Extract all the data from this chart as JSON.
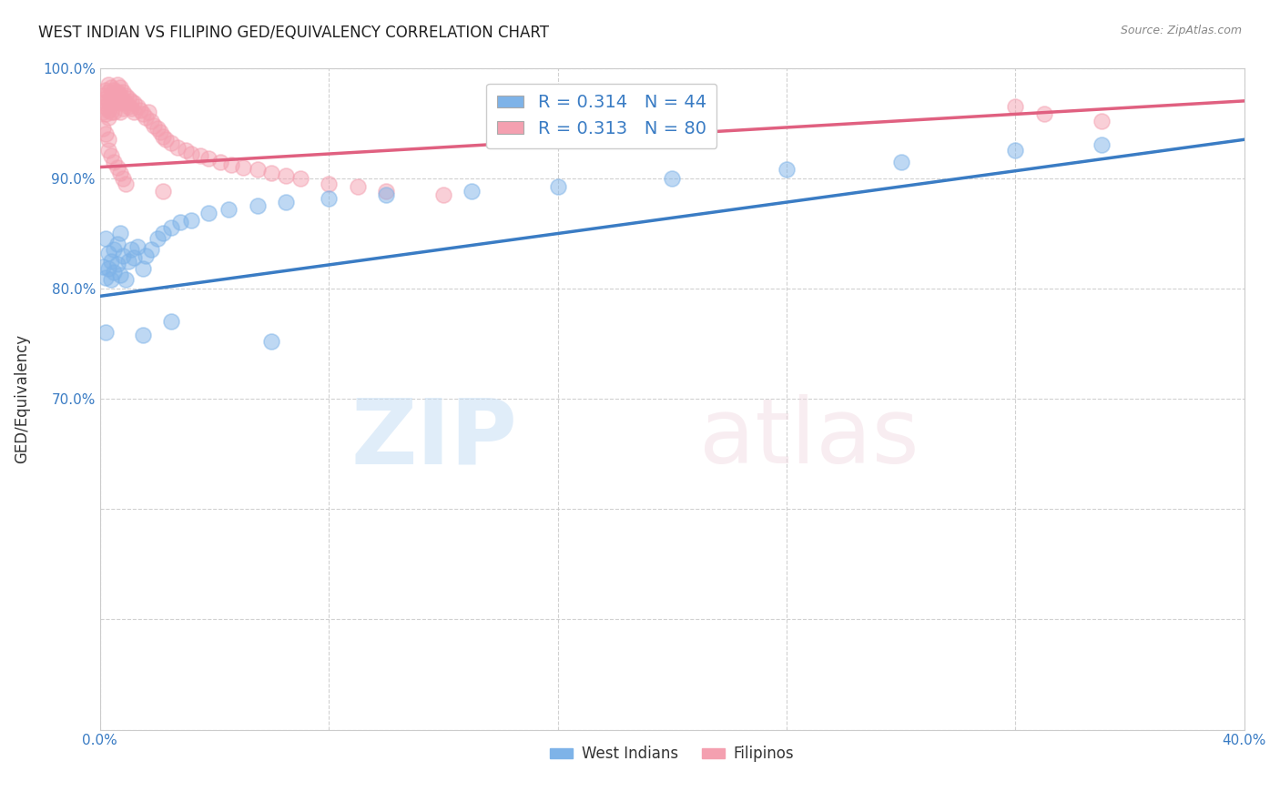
{
  "title": "WEST INDIAN VS FILIPINO GED/EQUIVALENCY CORRELATION CHART",
  "source": "Source: ZipAtlas.com",
  "ylabel": "GED/Equivalency",
  "xlim": [
    0.0,
    0.4
  ],
  "ylim": [
    0.4,
    1.0
  ],
  "xticks": [
    0.0,
    0.08,
    0.16,
    0.24,
    0.32,
    0.4
  ],
  "xticklabels": [
    "0.0%",
    "",
    "",
    "",
    "",
    "40.0%"
  ],
  "yticks": [
    0.4,
    0.5,
    0.6,
    0.7,
    0.8,
    0.9,
    1.0
  ],
  "yticklabels": [
    "",
    "",
    "",
    "70.0%",
    "80.0%",
    "90.0%",
    "100.0%"
  ],
  "west_indian_R": 0.314,
  "west_indian_N": 44,
  "filipino_R": 0.313,
  "filipino_N": 80,
  "west_indian_color": "#7EB3E8",
  "filipino_color": "#F4A0B0",
  "west_indian_line_color": "#3A7CC4",
  "filipino_line_color": "#E06080",
  "wi_x": [
    0.001,
    0.002,
    0.002,
    0.003,
    0.003,
    0.004,
    0.004,
    0.005,
    0.005,
    0.006,
    0.006,
    0.007,
    0.007,
    0.008,
    0.009,
    0.01,
    0.011,
    0.012,
    0.013,
    0.015,
    0.016,
    0.018,
    0.02,
    0.022,
    0.025,
    0.028,
    0.032,
    0.038,
    0.045,
    0.055,
    0.065,
    0.08,
    0.1,
    0.13,
    0.16,
    0.2,
    0.24,
    0.28,
    0.32,
    0.35,
    0.002,
    0.015,
    0.025,
    0.06
  ],
  "wi_y": [
    0.82,
    0.81,
    0.845,
    0.832,
    0.818,
    0.825,
    0.808,
    0.815,
    0.835,
    0.822,
    0.84,
    0.812,
    0.85,
    0.83,
    0.808,
    0.825,
    0.835,
    0.828,
    0.838,
    0.818,
    0.83,
    0.835,
    0.845,
    0.85,
    0.855,
    0.86,
    0.862,
    0.868,
    0.872,
    0.875,
    0.878,
    0.882,
    0.885,
    0.888,
    0.892,
    0.9,
    0.908,
    0.915,
    0.925,
    0.93,
    0.76,
    0.758,
    0.77,
    0.752
  ],
  "fi_x": [
    0.001,
    0.001,
    0.001,
    0.002,
    0.002,
    0.002,
    0.002,
    0.003,
    0.003,
    0.003,
    0.003,
    0.003,
    0.004,
    0.004,
    0.004,
    0.004,
    0.005,
    0.005,
    0.005,
    0.005,
    0.006,
    0.006,
    0.006,
    0.007,
    0.007,
    0.007,
    0.007,
    0.008,
    0.008,
    0.008,
    0.009,
    0.009,
    0.01,
    0.01,
    0.011,
    0.011,
    0.012,
    0.012,
    0.013,
    0.014,
    0.015,
    0.016,
    0.017,
    0.018,
    0.019,
    0.02,
    0.021,
    0.022,
    0.023,
    0.025,
    0.027,
    0.03,
    0.032,
    0.035,
    0.038,
    0.042,
    0.046,
    0.05,
    0.055,
    0.06,
    0.065,
    0.07,
    0.08,
    0.09,
    0.1,
    0.12,
    0.001,
    0.002,
    0.003,
    0.003,
    0.004,
    0.005,
    0.006,
    0.007,
    0.008,
    0.009,
    0.022,
    0.32,
    0.33,
    0.35
  ],
  "fi_y": [
    0.975,
    0.968,
    0.96,
    0.98,
    0.972,
    0.965,
    0.958,
    0.985,
    0.978,
    0.97,
    0.962,
    0.955,
    0.982,
    0.975,
    0.968,
    0.96,
    0.98,
    0.975,
    0.968,
    0.96,
    0.985,
    0.978,
    0.97,
    0.982,
    0.975,
    0.968,
    0.96,
    0.978,
    0.97,
    0.963,
    0.975,
    0.968,
    0.972,
    0.965,
    0.97,
    0.963,
    0.968,
    0.96,
    0.965,
    0.962,
    0.958,
    0.955,
    0.96,
    0.952,
    0.948,
    0.945,
    0.942,
    0.938,
    0.935,
    0.932,
    0.928,
    0.925,
    0.922,
    0.92,
    0.918,
    0.915,
    0.912,
    0.91,
    0.908,
    0.905,
    0.902,
    0.9,
    0.895,
    0.892,
    0.888,
    0.885,
    0.945,
    0.94,
    0.935,
    0.925,
    0.92,
    0.915,
    0.91,
    0.905,
    0.9,
    0.895,
    0.888,
    0.965,
    0.958,
    0.952
  ],
  "wi_line_x0": 0.0,
  "wi_line_x1": 0.4,
  "wi_line_y0": 0.793,
  "wi_line_y1": 0.935,
  "fi_line_x0": 0.0,
  "fi_line_x1": 0.4,
  "fi_line_y0": 0.91,
  "fi_line_y1": 0.97
}
